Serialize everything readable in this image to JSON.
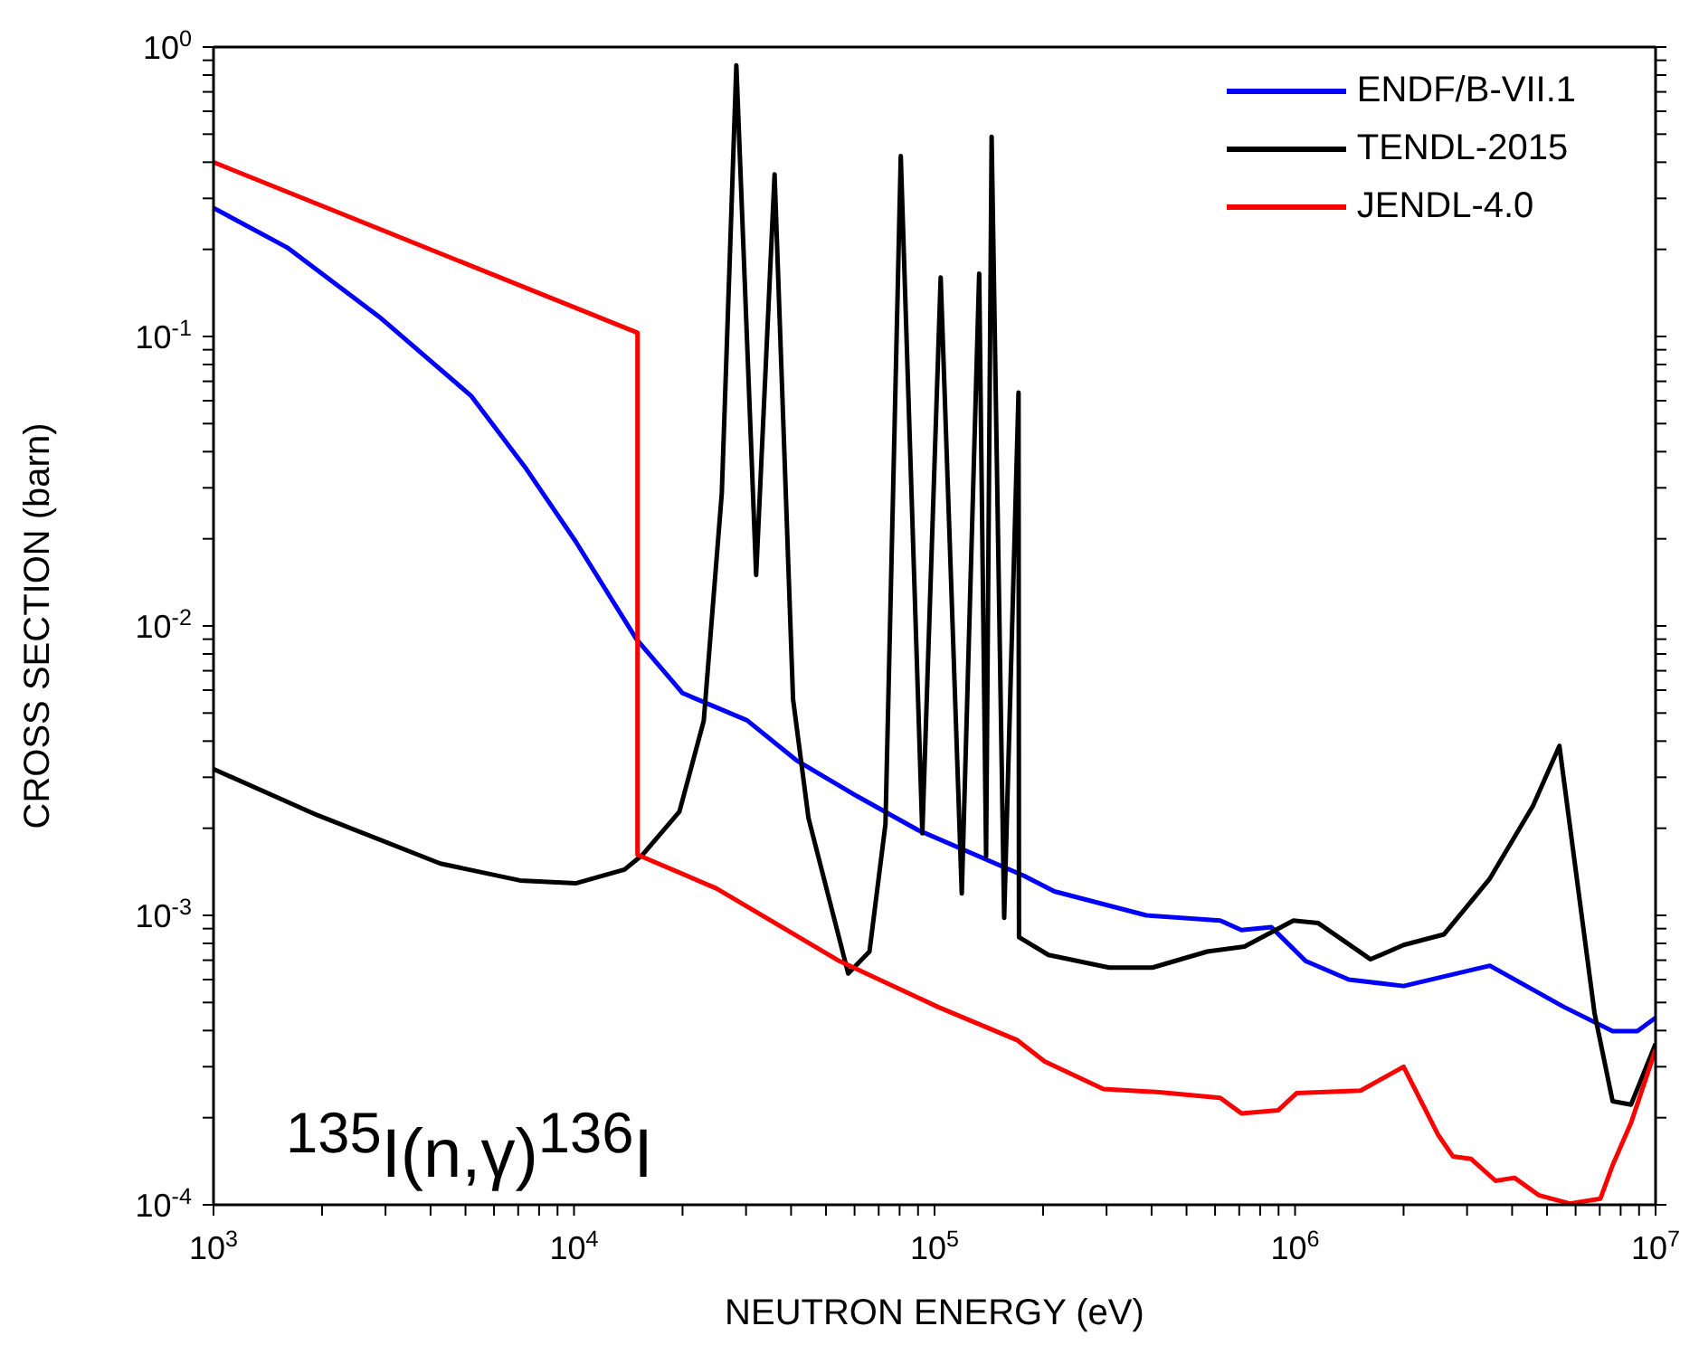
{
  "chart_data": {
    "type": "line",
    "xlabel": "NEUTRON ENERGY (eV)",
    "ylabel": "CROSS SECTION (barn)",
    "log": "xy",
    "legend": "top right",
    "marker": "none",
    "line_style": "solid",
    "annotations": [
      "$^{135}$I(n,γ)$^{136}$I"
    ],
    "xlim": [
      1000,
      10000000
    ],
    "ylim": [
      0.0001,
      1
    ],
    "xticks": [
      {
        "value": 1000,
        "label": "10$^{3}$"
      },
      {
        "value": 2000,
        "label": null
      },
      {
        "value": 3000,
        "label": null
      },
      {
        "value": 4000,
        "label": null
      },
      {
        "value": 5000,
        "label": null
      },
      {
        "value": 6000,
        "label": null
      },
      {
        "value": 7000,
        "label": null
      },
      {
        "value": 8000,
        "label": null
      },
      {
        "value": 9000,
        "label": null
      },
      {
        "value": 10000,
        "label": "10$^{4}$"
      },
      {
        "value": 20000,
        "label": null
      },
      {
        "value": 30000,
        "label": null
      },
      {
        "value": 40000,
        "label": null
      },
      {
        "value": 50000,
        "label": null
      },
      {
        "value": 60000,
        "label": null
      },
      {
        "value": 70000,
        "label": null
      },
      {
        "value": 80000,
        "label": null
      },
      {
        "value": 90000,
        "label": null
      },
      {
        "value": 100000,
        "label": "10$^{5}$"
      },
      {
        "value": 200000,
        "label": null
      },
      {
        "value": 300000,
        "label": null
      },
      {
        "value": 400000,
        "label": null
      },
      {
        "value": 500000,
        "label": null
      },
      {
        "value": 600000,
        "label": null
      },
      {
        "value": 700000,
        "label": null
      },
      {
        "value": 800000,
        "label": null
      },
      {
        "value": 900000,
        "label": null
      },
      {
        "value": 1000000,
        "label": "10$^{6}$"
      },
      {
        "value": 2000000,
        "label": null
      },
      {
        "value": 3000000,
        "label": null
      },
      {
        "value": 4000000,
        "label": null
      },
      {
        "value": 5000000,
        "label": null
      },
      {
        "value": 6000000,
        "label": null
      },
      {
        "value": 7000000,
        "label": null
      },
      {
        "value": 8000000,
        "label": null
      },
      {
        "value": 9000000,
        "label": null
      },
      {
        "value": 10000000,
        "label": "10$^{7}$"
      }
    ],
    "yticks": [
      {
        "value": 0.0001,
        "label": "10$^{-4}$"
      },
      {
        "value": 0.0002,
        "label": null
      },
      {
        "value": 0.0003,
        "label": null
      },
      {
        "value": 0.0004,
        "label": null
      },
      {
        "value": 0.0005,
        "label": null
      },
      {
        "value": 0.0006,
        "label": null
      },
      {
        "value": 0.0007,
        "label": null
      },
      {
        "value": 0.0008,
        "label": null
      },
      {
        "value": 0.0009,
        "label": null
      },
      {
        "value": 0.001,
        "label": "10$^{-3}$"
      },
      {
        "value": 0.002,
        "label": null
      },
      {
        "value": 0.003,
        "label": null
      },
      {
        "value": 0.004,
        "label": null
      },
      {
        "value": 0.005,
        "label": null
      },
      {
        "value": 0.006,
        "label": null
      },
      {
        "value": 0.007,
        "label": null
      },
      {
        "value": 0.008,
        "label": null
      },
      {
        "value": 0.009,
        "label": null
      },
      {
        "value": 0.01,
        "label": "10$^{-2}$"
      },
      {
        "value": 0.02,
        "label": null
      },
      {
        "value": 0.03,
        "label": null
      },
      {
        "value": 0.04,
        "label": null
      },
      {
        "value": 0.05,
        "label": null
      },
      {
        "value": 0.06,
        "label": null
      },
      {
        "value": 0.07,
        "label": null
      },
      {
        "value": 0.08,
        "label": null
      },
      {
        "value": 0.09,
        "label": null
      },
      {
        "value": 0.1,
        "label": "10$^{-1}$"
      },
      {
        "value": 0.2,
        "label": null
      },
      {
        "value": 0.3,
        "label": null
      },
      {
        "value": 0.4,
        "label": null
      },
      {
        "value": 0.5,
        "label": null
      },
      {
        "value": 0.6,
        "label": null
      },
      {
        "value": 0.7,
        "label": null
      },
      {
        "value": 0.8,
        "label": null
      },
      {
        "value": 0.9,
        "label": null
      },
      {
        "value": 1,
        "label": "10$^{0}$"
      }
    ],
    "series": [
      {
        "name": "ENDF/B-VII.1",
        "color": "#0000ff",
        "x": [
          1000,
          1600,
          2880,
          5180,
          7370,
          10100,
          14900,
          20000,
          30200,
          41300,
          61000,
          90000,
          177000,
          215000,
          387000,
          620000,
          710000,
          860000,
          1070000,
          1410000,
          2000000,
          3470000,
          5560000,
          7600000,
          8900000,
          10000000
        ],
        "values": [
          0.278,
          0.203,
          0.117,
          0.0624,
          0.0349,
          0.0196,
          0.009,
          0.00586,
          0.00472,
          0.00344,
          0.00258,
          0.00197,
          0.00137,
          0.00121,
          0.001,
          0.00096,
          0.00089,
          0.00091,
          0.000695,
          0.0006,
          0.00057,
          0.00067,
          0.000483,
          0.000398,
          0.000398,
          0.000443
        ]
      },
      {
        "name": "TENDL-2015",
        "color": "#000000",
        "x": [
          1000,
          1940,
          4260,
          7080,
          10100,
          13800,
          15500,
          19600,
          22900,
          25700,
          28200,
          32000,
          36000,
          40500,
          44700,
          57600,
          66000,
          73100,
          80600,
          92500,
          104000,
          119000,
          133000,
          139000,
          144000,
          156000,
          171000,
          171500,
          207000,
          305000,
          402000,
          571000,
          724000,
          990000,
          1160000,
          1620000,
          2000000,
          2590000,
          3470000,
          4570000,
          5410000,
          6770000,
          7600000,
          8550000,
          10000000
        ],
        "values": [
          0.0032,
          0.00222,
          0.00151,
          0.00132,
          0.00129,
          0.00144,
          0.00162,
          0.00228,
          0.0047,
          0.0288,
          0.865,
          0.015,
          0.363,
          0.0056,
          0.00217,
          0.00063,
          0.00075,
          0.00207,
          0.42,
          0.00192,
          0.16,
          0.00119,
          0.165,
          0.0016,
          0.49,
          0.00098,
          0.064,
          0.00084,
          0.00073,
          0.00066,
          0.00066,
          0.00075,
          0.00078,
          0.00096,
          0.00094,
          0.000705,
          0.00079,
          0.00086,
          0.00134,
          0.00239,
          0.00385,
          0.00046,
          0.000228,
          0.000222,
          0.00036
        ]
      },
      {
        "name": "JENDL-4.0",
        "color": "#ff0000",
        "x": [
          1000,
          15000,
          15000,
          24800,
          54500,
          102000,
          170000,
          202000,
          294000,
          420000,
          620000,
          710000,
          897000,
          1010000,
          1520000,
          2000000,
          2490000,
          2740000,
          3080000,
          3600000,
          4060000,
          4740000,
          5780000,
          7030000,
          7600000,
          8550000,
          10000000
        ],
        "values": [
          0.4,
          0.103,
          0.00162,
          0.00124,
          0.000695,
          0.000483,
          0.00037,
          0.000313,
          0.000251,
          0.000245,
          0.000234,
          0.000207,
          0.000212,
          0.000243,
          0.000248,
          0.0003,
          0.000175,
          0.000147,
          0.000144,
          0.000121,
          0.000124,
          0.000108,
          0.000101,
          0.000105,
          0.000137,
          0.000192,
          0.000344
        ]
      }
    ]
  }
}
